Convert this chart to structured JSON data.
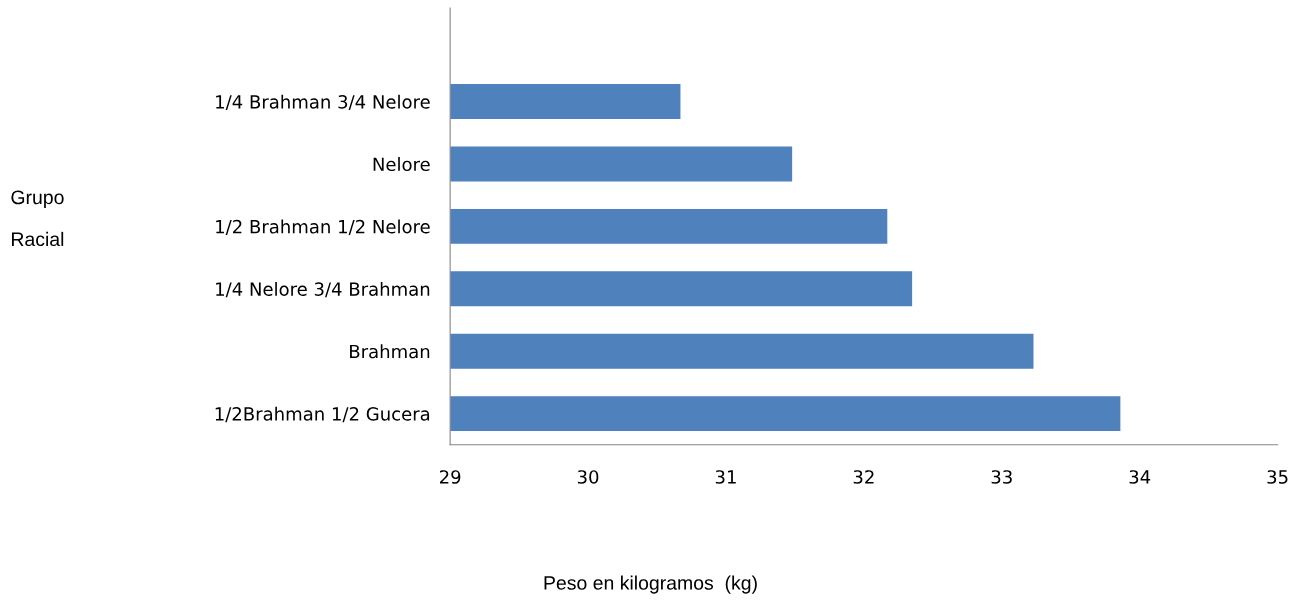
{
  "chart_data": {
    "type": "bar",
    "orientation": "horizontal",
    "xlabel": "Peso en kilogramos  (kg)",
    "ylabel": "Grupo\n\nRacial",
    "categories": [
      "1/4 Brahman 3/4 Nelore",
      "Nelore",
      "1/2 Brahman 1/2 Nelore",
      "1/4 Nelore 3/4 Brahman",
      "Brahman",
      "1/2Brahman 1/2 Gucera"
    ],
    "values": [
      30.67,
      31.48,
      32.17,
      32.35,
      33.23,
      33.86
    ],
    "color": "#4f81bd",
    "xlim": [
      29,
      35
    ],
    "xticks": [
      29,
      30,
      31,
      32,
      33,
      34,
      35
    ],
    "grid": false,
    "legend": false
  }
}
